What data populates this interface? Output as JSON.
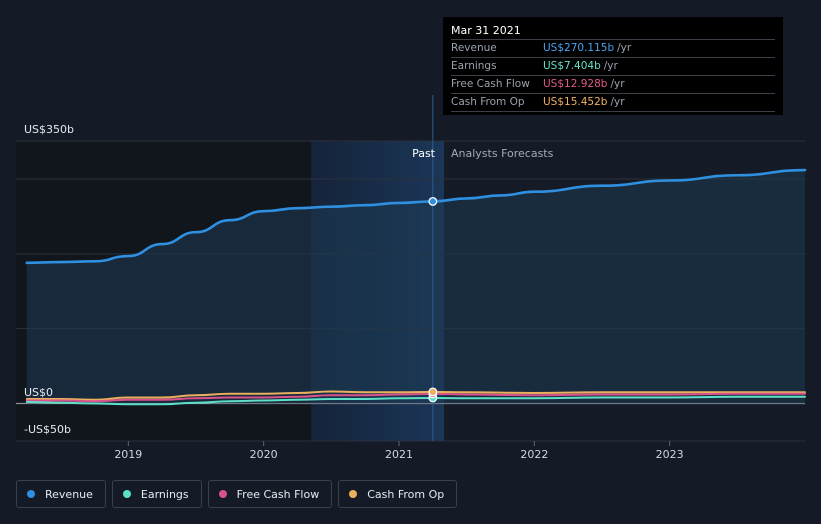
{
  "tooltip": {
    "date": "Mar 31 2021",
    "rows": [
      {
        "label": "Revenue",
        "value": "US$270.115b",
        "unit": "/yr",
        "color": "#4aa3f0"
      },
      {
        "label": "Earnings",
        "value": "US$7.404b",
        "unit": "/yr",
        "color": "#66e0c9"
      },
      {
        "label": "Free Cash Flow",
        "value": "US$12.928b",
        "unit": "/yr",
        "color": "#e0588a"
      },
      {
        "label": "Cash From Op",
        "value": "US$15.452b",
        "unit": "/yr",
        "color": "#f0b060"
      }
    ]
  },
  "legend": [
    {
      "label": "Revenue",
      "color": "#2f8fe0"
    },
    {
      "label": "Earnings",
      "color": "#5ee0c8"
    },
    {
      "label": "Free Cash Flow",
      "color": "#d8538c"
    },
    {
      "label": "Cash From Op",
      "color": "#eab05e"
    }
  ],
  "chart_data": {
    "type": "line",
    "y_tick_labels": {
      "top": "US$350b",
      "zero": "US$0",
      "bottom": "-US$50b"
    },
    "ylim": [
      -50,
      350
    ],
    "xlim": [
      2018.17,
      2024.0
    ],
    "x_ticks": [
      2019,
      2020,
      2021,
      2022,
      2023
    ],
    "x_tick_labels": [
      "2019",
      "2020",
      2021,
      "2022",
      "2023"
    ],
    "regions": {
      "past_label": "Past",
      "forecast_label": "Analysts Forecasts",
      "divider_x": 2021.25
    },
    "highlight_x": 2021.25,
    "grid": true,
    "legend_position": "bottom-left",
    "series": [
      {
        "name": "Revenue",
        "color": "#2f8fe0",
        "x": [
          2018.25,
          2018.5,
          2018.75,
          2019.0,
          2019.25,
          2019.5,
          2019.75,
          2020.0,
          2020.25,
          2020.5,
          2020.75,
          2021.0,
          2021.25,
          2021.5,
          2021.75,
          2022.0,
          2022.5,
          2023.0,
          2023.5,
          2024.0
        ],
        "y": [
          188,
          189,
          190,
          197,
          213,
          229,
          245,
          257,
          261,
          263,
          265,
          268,
          270,
          274,
          278,
          283,
          291,
          298,
          305,
          312
        ]
      },
      {
        "name": "Earnings",
        "color": "#5ee0c8",
        "x": [
          2018.25,
          2018.5,
          2018.75,
          2019.0,
          2019.25,
          2019.5,
          2019.75,
          2020.0,
          2020.25,
          2020.5,
          2020.75,
          2021.0,
          2021.25,
          2021.5,
          2022.0,
          2022.5,
          2023.0,
          2023.5,
          2024.0
        ],
        "y": [
          2,
          1,
          0,
          -1,
          -1,
          1,
          3,
          4,
          5,
          6,
          6,
          7,
          7.4,
          7,
          7,
          8,
          8,
          9,
          9
        ]
      },
      {
        "name": "Free Cash Flow",
        "color": "#d8538c",
        "x": [
          2018.25,
          2018.5,
          2018.75,
          2019.0,
          2019.25,
          2019.5,
          2019.75,
          2020.0,
          2020.25,
          2020.5,
          2020.75,
          2021.0,
          2021.25,
          2021.5,
          2022.0,
          2022.5,
          2023.0,
          2023.5,
          2024.0
        ],
        "y": [
          4,
          4,
          3,
          5,
          5,
          7,
          8,
          8,
          9,
          11,
          11,
          12,
          12.9,
          12,
          11,
          12,
          12,
          13,
          13
        ]
      },
      {
        "name": "Cash From Op",
        "color": "#eab05e",
        "x": [
          2018.25,
          2018.5,
          2018.75,
          2019.0,
          2019.25,
          2019.5,
          2019.75,
          2020.0,
          2020.25,
          2020.5,
          2020.75,
          2021.0,
          2021.25,
          2021.5,
          2022.0,
          2022.5,
          2023.0,
          2023.5,
          2024.0
        ],
        "y": [
          6,
          6,
          5,
          8,
          8,
          11,
          13,
          13,
          14,
          16,
          15,
          15,
          15.5,
          15,
          14,
          15,
          15,
          15,
          15
        ]
      }
    ]
  }
}
